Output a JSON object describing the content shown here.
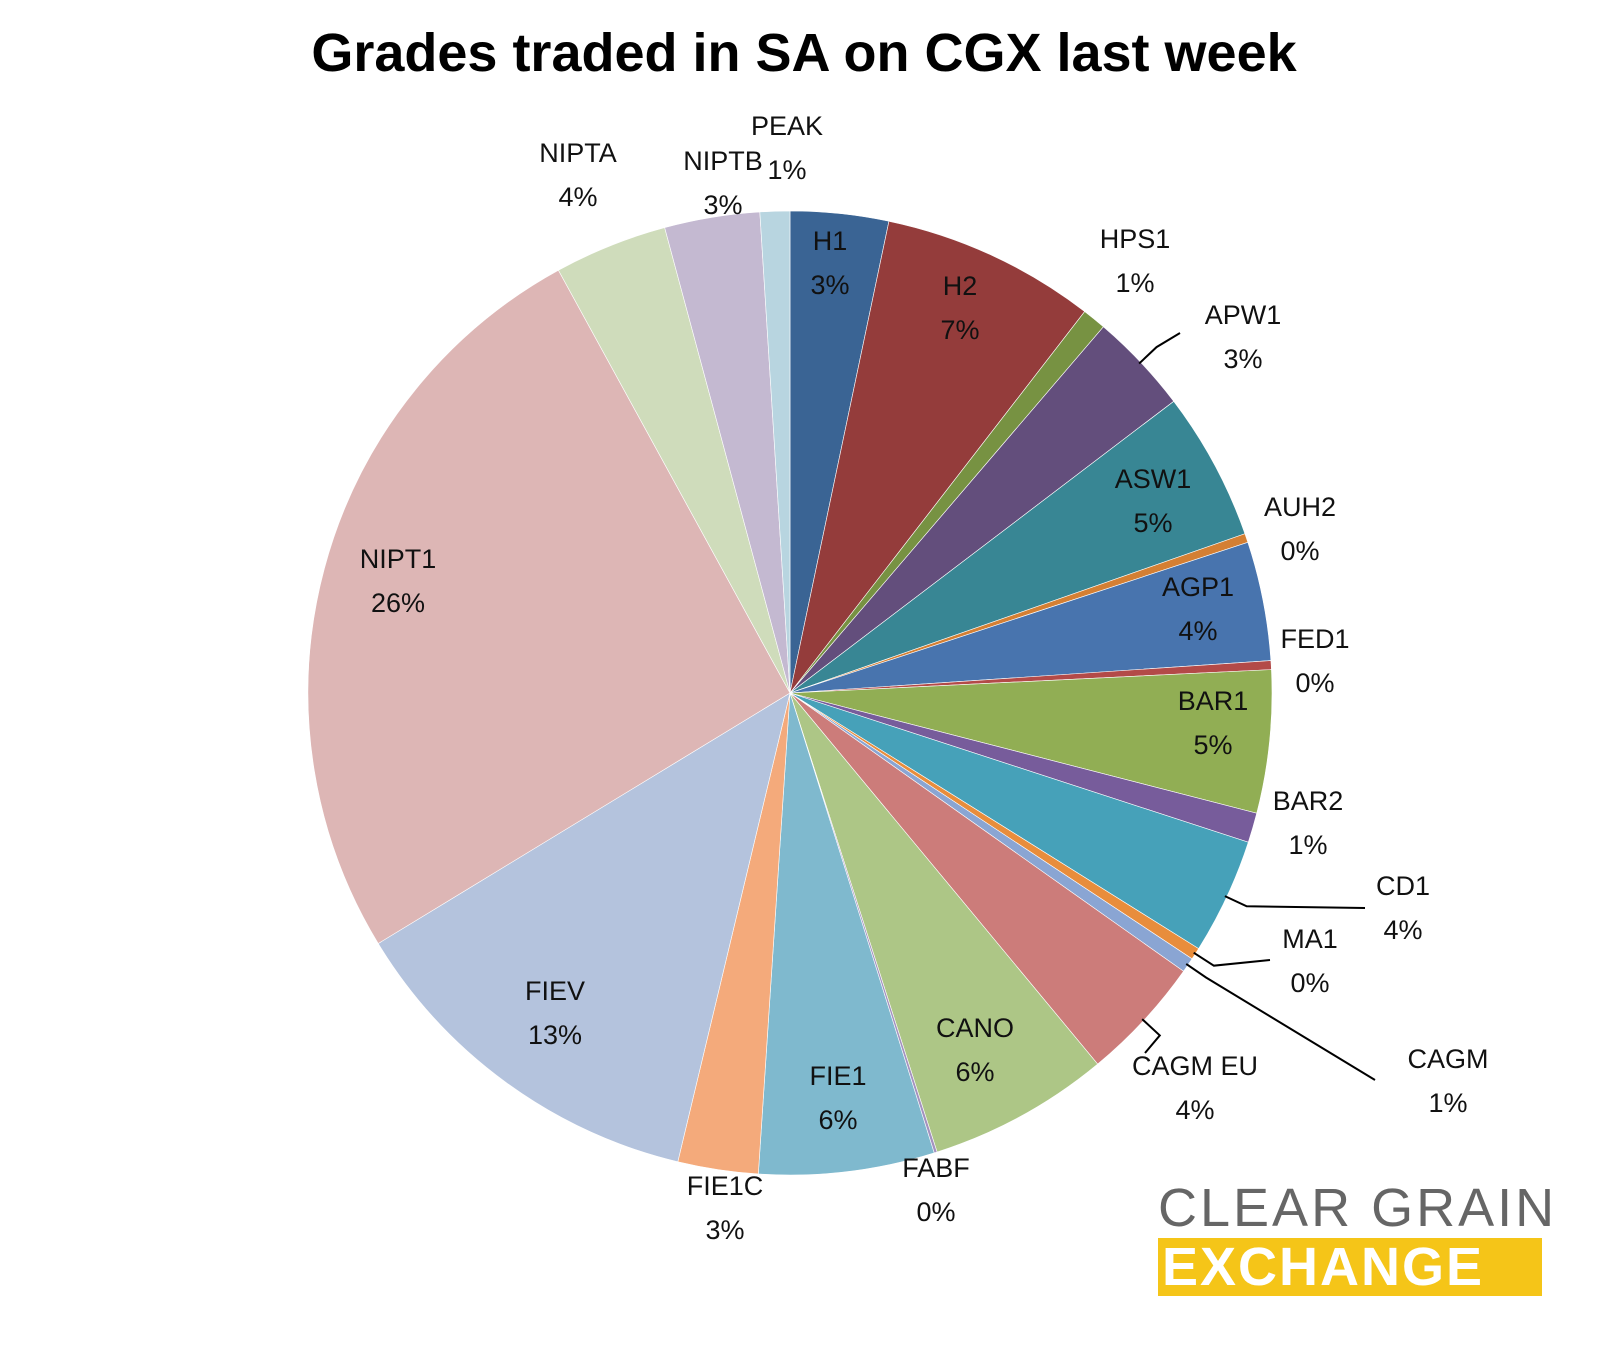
{
  "chart_data": {
    "type": "pie",
    "title": "Grades traded in SA on CGX last week",
    "unit": "%",
    "slices": [
      {
        "name": "H1",
        "value": 3.3,
        "label": "3%",
        "color": "#3a6494"
      },
      {
        "name": "H2",
        "value": 7.2,
        "label": "7%",
        "color": "#943c3b"
      },
      {
        "name": "HPS1",
        "value": 0.8,
        "label": "1%",
        "color": "#779242"
      },
      {
        "name": "APW1",
        "value": 3.4,
        "label": "3%",
        "color": "#634e7c"
      },
      {
        "name": "ASW1",
        "value": 5.0,
        "label": "5%",
        "color": "#388694"
      },
      {
        "name": "AUH2",
        "value": 0.3,
        "label": "0%",
        "color": "#d47f33"
      },
      {
        "name": "AGP1",
        "value": 4.0,
        "label": "4%",
        "color": "#4874ae"
      },
      {
        "name": "FED1",
        "value": 0.3,
        "label": "0%",
        "color": "#b34a48"
      },
      {
        "name": "BAR1",
        "value": 4.8,
        "label": "5%",
        "color": "#91ae54"
      },
      {
        "name": "BAR2",
        "value": 1.0,
        "label": "1%",
        "color": "#775c9b"
      },
      {
        "name": "CD1",
        "value": 3.9,
        "label": "4%",
        "color": "#46a1b9"
      },
      {
        "name": "MA1",
        "value": 0.4,
        "label": "0%",
        "color": "#e88d3c"
      },
      {
        "name": "CAGM",
        "value": 0.5,
        "label": "1%",
        "color": "#8aa5d3"
      },
      {
        "name": "CAGM EU",
        "value": 4.2,
        "label": "4%",
        "color": "#cc7c7a"
      },
      {
        "name": "CANO",
        "value": 6.1,
        "label": "6%",
        "color": "#adc686"
      },
      {
        "name": "FABF",
        "value": 0.1,
        "label": "0%",
        "color": "#a493bf"
      },
      {
        "name": "FIE1",
        "value": 5.9,
        "label": "6%",
        "color": "#7fb9ce"
      },
      {
        "name": "FIE1C",
        "value": 2.7,
        "label": "3%",
        "color": "#f4aa7b"
      },
      {
        "name": "FIEV",
        "value": 12.6,
        "label": "13%",
        "color": "#b4c3dd"
      },
      {
        "name": "NIPT1",
        "value": 25.8,
        "label": "26%",
        "color": "#ddb6b5"
      },
      {
        "name": "NIPTA",
        "value": 3.8,
        "label": "4%",
        "color": "#cfdcbb"
      },
      {
        "name": "NIPTB",
        "value": 3.2,
        "label": "3%",
        "color": "#c4b9d1"
      },
      {
        "name": "PEAK",
        "value": 1.0,
        "label": "1%",
        "color": "#b8d5e0"
      }
    ]
  },
  "logo": {
    "line1": "CLEAR GRAIN",
    "line2": "EXCHANGE",
    "text_color": "#666666",
    "band_color": "#f5c518"
  }
}
